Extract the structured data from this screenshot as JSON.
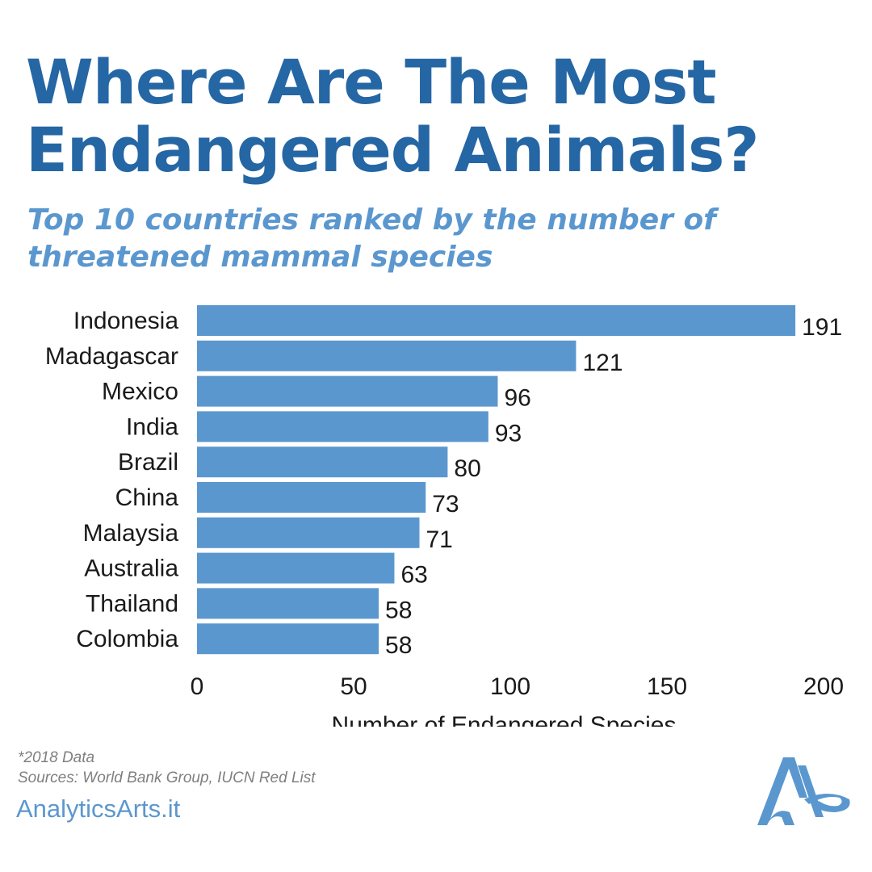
{
  "title": "Where Are The Most Endangered Animals?",
  "subtitle": "Top 10 countries ranked by the number of threatened mammal species",
  "footnote": {
    "year": "*2018 Data",
    "sources": "Sources: World Bank Group, IUCN Red List"
  },
  "brand": "AnalyticsArts.it",
  "colors": {
    "title": "#2566a4",
    "subtitle": "#5b97cf",
    "bar": "#5b97cf",
    "brand": "#5b97cf"
  },
  "chart_data": {
    "type": "bar",
    "orientation": "horizontal",
    "categories": [
      "Indonesia",
      "Madagascar",
      "Mexico",
      "India",
      "Brazil",
      "China",
      "Malaysia",
      "Australia",
      "Thailand",
      "Colombia"
    ],
    "values": [
      191,
      121,
      96,
      93,
      80,
      73,
      71,
      63,
      58,
      58
    ],
    "title": "Where Are The Most Endangered Animals?",
    "subtitle": "Top 10 countries ranked by the number of threatened mammal species",
    "xlabel": "Number of Endangered Species",
    "ylabel": "",
    "xlim": [
      0,
      200
    ],
    "xticks": [
      0,
      50,
      100,
      150,
      200
    ],
    "grid": false,
    "data_labels": true
  }
}
